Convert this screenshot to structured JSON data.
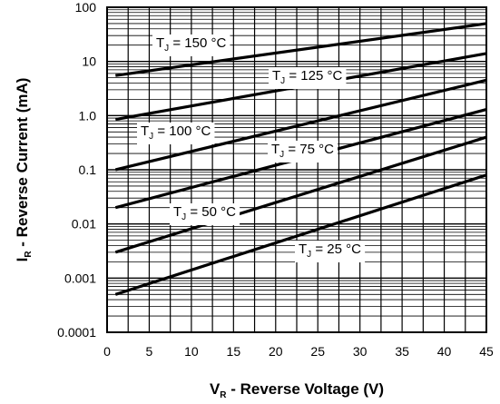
{
  "chart_data": {
    "type": "line",
    "xlabel": "V",
    "xlabel_sub": "R",
    "xlabel_rest": " - Reverse Voltage (V)",
    "ylabel": "I",
    "ylabel_sub": "R",
    "ylabel_rest": " - Reverse Current (mA)",
    "xlim": [
      0,
      45
    ],
    "ylim": [
      0.0001,
      100
    ],
    "y_scale": "log",
    "grid": true,
    "x_ticks": [
      0,
      5,
      10,
      15,
      20,
      25,
      30,
      35,
      40,
      45
    ],
    "x_tick_labels": [
      "0",
      "5",
      "10",
      "15",
      "20",
      "25",
      "30",
      "35",
      "40",
      "45"
    ],
    "y_ticks": [
      0.0001,
      0.001,
      0.01,
      0.1,
      1,
      10,
      100
    ],
    "y_tick_labels": [
      "0.0001",
      "0.001",
      "0.01",
      "0.1",
      "1.0",
      "10",
      "100"
    ],
    "series": [
      {
        "prefix": "T",
        "sub": "J",
        "suffix": " = 150 °C",
        "x": [
          1,
          45
        ],
        "y": [
          5.5,
          50
        ]
      },
      {
        "prefix": "T",
        "sub": "J",
        "suffix": " = 125 °C",
        "x": [
          1,
          45
        ],
        "y": [
          0.85,
          14
        ]
      },
      {
        "prefix": "T",
        "sub": "J",
        "suffix": " = 100 °C",
        "x": [
          1,
          45
        ],
        "y": [
          0.1,
          4.5
        ]
      },
      {
        "prefix": "T",
        "sub": "J",
        "suffix": " = 75 °C",
        "x": [
          1,
          45
        ],
        "y": [
          0.02,
          1.3
        ]
      },
      {
        "prefix": "T",
        "sub": "J",
        "suffix": " = 50 °C",
        "x": [
          1,
          45
        ],
        "y": [
          0.003,
          0.4
        ]
      },
      {
        "prefix": "T",
        "sub": "J",
        "suffix": " = 25 °C",
        "x": [
          1,
          45
        ],
        "y": [
          0.0005,
          0.08
        ]
      }
    ]
  }
}
